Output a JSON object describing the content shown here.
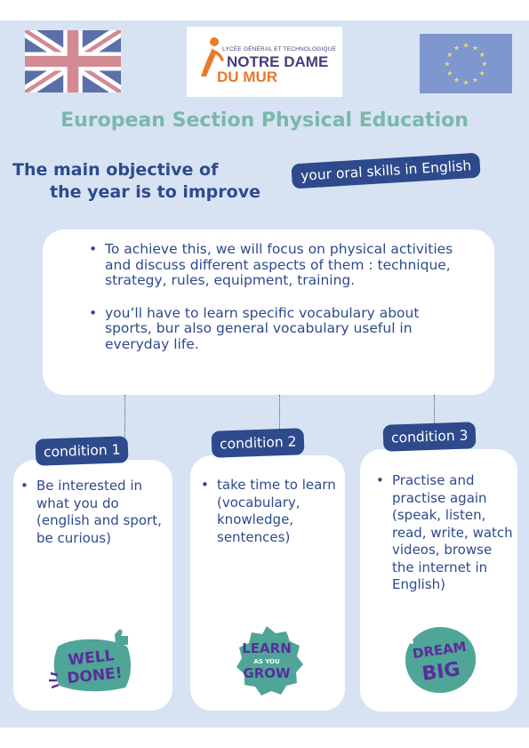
{
  "header": {
    "logo": {
      "small_text": "LYCÉE GÉNÉRAL ET TECHNOLOGIQUE",
      "line1": "NOTRE DAME",
      "line2": "DU MUR"
    },
    "flags": {
      "left": "uk-flag-icon",
      "right": "eu-flag-icon"
    }
  },
  "title": "European Section Physical Education",
  "objective": {
    "line1": "The main objective of",
    "line2": "the year is to improve",
    "tag": "your oral skills in English"
  },
  "main_card": {
    "bullets": [
      "To achieve this, we will focus on physical activities and discuss different aspects of them : technique, strategy, rules, equipment, training.",
      "you’ll have to learn specific vocabulary about sports, bur also general vocabulary useful in everyday life."
    ]
  },
  "conditions": [
    {
      "label": "condition 1",
      "text": "Be interested in what you do (english and sport, be curious)",
      "sticker": [
        "WELL",
        "DONE!"
      ]
    },
    {
      "label": "condition 2",
      "text": "take time to learn (vocabulary, knowledge, sentences)",
      "sticker": [
        "LEARN",
        "AS YOU",
        "GROW"
      ]
    },
    {
      "label": "condition 3",
      "text": "Practise and practise again (speak, listen, read, write, watch videos, browse the internet in English)",
      "sticker": [
        "DREAM",
        "BIG"
      ]
    }
  ],
  "colors": {
    "background": "#d7e3f3",
    "navy": "#2e4a8c",
    "title_teal": "#7ab8a8",
    "sticker_teal": "#4fa597",
    "sticker_purple": "#5a2d9c",
    "logo_orange": "#e87a2b"
  }
}
